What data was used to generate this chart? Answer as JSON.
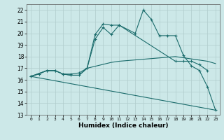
{
  "xlabel": "Humidex (Indice chaleur)",
  "ylabel": "",
  "xlim": [
    -0.5,
    23.5
  ],
  "ylim": [
    13,
    22.5
  ],
  "xticks": [
    0,
    1,
    2,
    3,
    4,
    5,
    6,
    7,
    8,
    9,
    10,
    11,
    12,
    13,
    14,
    15,
    16,
    17,
    18,
    19,
    20,
    21,
    22,
    23
  ],
  "yticks": [
    13,
    14,
    15,
    16,
    17,
    18,
    19,
    20,
    21,
    22
  ],
  "bg_color": "#cce8e8",
  "grid_color": "#b0cccc",
  "line_color": "#1a6b6b",
  "lines": [
    {
      "x": [
        0,
        1,
        2,
        3,
        4,
        5,
        6,
        7,
        8,
        9,
        10,
        11,
        13,
        14,
        15,
        16,
        17,
        18,
        19,
        20,
        21,
        22,
        23
      ],
      "y": [
        16.3,
        16.5,
        16.8,
        16.8,
        16.5,
        16.5,
        16.6,
        17.0,
        19.9,
        20.8,
        20.7,
        20.7,
        20.0,
        22.0,
        21.2,
        19.8,
        19.8,
        19.8,
        18.1,
        17.2,
        16.8,
        15.4,
        13.4
      ],
      "marker": "+"
    },
    {
      "x": [
        0,
        2,
        3,
        4,
        5,
        6,
        7,
        8,
        9,
        10,
        11,
        18,
        19,
        20,
        21,
        22
      ],
      "y": [
        16.3,
        16.8,
        16.8,
        16.5,
        16.4,
        16.4,
        17.0,
        19.5,
        20.5,
        19.9,
        20.7,
        17.6,
        17.6,
        17.6,
        17.3,
        16.8
      ],
      "marker": "+"
    },
    {
      "x": [
        0,
        2,
        3,
        4,
        5,
        6,
        7,
        10,
        11,
        18,
        22,
        23
      ],
      "y": [
        16.3,
        16.8,
        16.8,
        16.5,
        16.4,
        16.4,
        17.0,
        17.5,
        17.6,
        18.0,
        17.6,
        17.4
      ],
      "marker": null
    },
    {
      "x": [
        0,
        23
      ],
      "y": [
        16.3,
        13.4
      ],
      "marker": null
    }
  ]
}
